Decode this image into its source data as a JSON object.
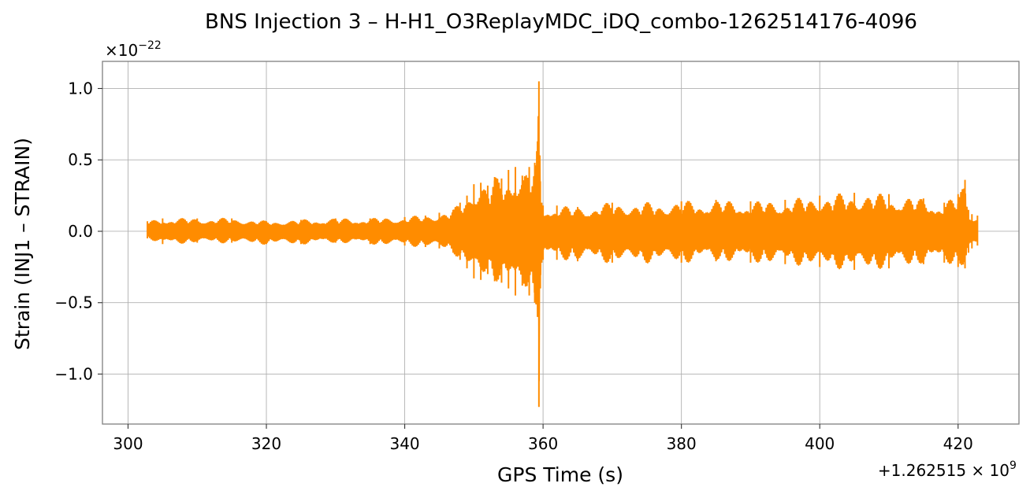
{
  "chart_data": {
    "type": "line",
    "title": "BNS Injection 3 – H-H1_O3ReplayMDC_iDQ_combo-1262514176-4096",
    "xlabel": "GPS Time (s)",
    "ylabel": "Strain (INJ1 – STRAIN)",
    "x_offset_label": "+1.262515 × 10",
    "x_offset_exponent": "9",
    "y_scale_label": "×10",
    "y_scale_exponent": "−22",
    "xlim": [
      296.3,
      428.8
    ],
    "ylim": [
      -1.35,
      1.19
    ],
    "x_ticks": [
      300,
      320,
      340,
      360,
      380,
      400,
      420
    ],
    "x_tick_labels": [
      "300",
      "320",
      "340",
      "360",
      "380",
      "400",
      "420"
    ],
    "y_ticks": [
      1.0,
      0.5,
      0.0,
      -0.5,
      -1.0
    ],
    "y_tick_labels": [
      "1.0",
      "0.5",
      "0.0",
      "−0.5",
      "−1.0"
    ],
    "grid": true,
    "series": [
      {
        "color": "#ff8c00",
        "x": [
          302.8,
          305,
          310,
          315,
          320,
          325,
          330,
          335,
          340,
          343,
          345,
          347,
          348,
          349,
          350,
          351,
          352,
          353,
          354,
          355,
          356,
          357,
          358,
          358.8,
          359.2,
          359.4,
          359.6,
          359.8,
          360,
          362,
          365,
          370,
          375,
          380,
          385,
          390,
          395,
          400,
          405,
          410,
          415,
          418,
          420,
          421,
          421.5,
          422,
          422.8
        ],
        "upper": [
          0.07,
          0.09,
          0.09,
          0.09,
          0.07,
          0.08,
          0.09,
          0.09,
          0.1,
          0.11,
          0.13,
          0.15,
          0.2,
          0.25,
          0.33,
          0.34,
          0.32,
          0.38,
          0.37,
          0.43,
          0.45,
          0.39,
          0.45,
          0.48,
          0.63,
          1.05,
          0.35,
          0.2,
          0.18,
          0.18,
          0.17,
          0.2,
          0.2,
          0.21,
          0.22,
          0.21,
          0.22,
          0.25,
          0.27,
          0.26,
          0.23,
          0.2,
          0.26,
          0.36,
          0.15,
          0.12,
          0.11
        ],
        "lower": [
          -0.05,
          -0.09,
          -0.08,
          -0.08,
          -0.09,
          -0.09,
          -0.08,
          -0.09,
          -0.1,
          -0.11,
          -0.12,
          -0.15,
          -0.2,
          -0.26,
          -0.33,
          -0.34,
          -0.3,
          -0.35,
          -0.36,
          -0.4,
          -0.45,
          -0.38,
          -0.45,
          -0.5,
          -0.6,
          -1.23,
          -0.4,
          -0.22,
          -0.2,
          -0.2,
          -0.21,
          -0.22,
          -0.22,
          -0.22,
          -0.21,
          -0.22,
          -0.23,
          -0.25,
          -0.27,
          -0.26,
          -0.23,
          -0.22,
          -0.25,
          -0.26,
          -0.15,
          -0.12,
          -0.1
        ]
      }
    ]
  }
}
